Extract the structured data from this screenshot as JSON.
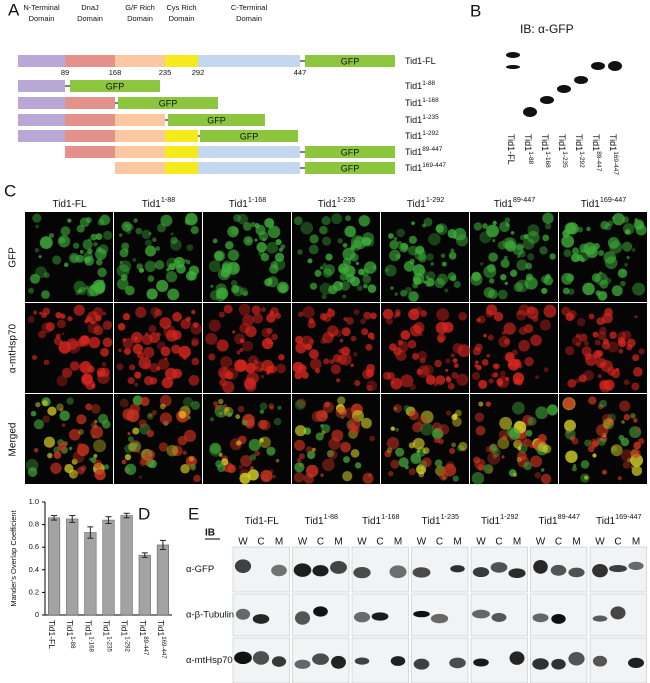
{
  "panel_labels": {
    "a": "A",
    "b": "B",
    "c": "C",
    "d": "D",
    "e": "E"
  },
  "schematic": {
    "domains": [
      {
        "lines": [
          "N-Terminal",
          "Domain"
        ],
        "color": "#b9a7d6"
      },
      {
        "lines": [
          "DnaJ",
          "Domain"
        ],
        "color": "#e3918a"
      },
      {
        "lines": [
          "G/F Rich",
          "Domain"
        ],
        "color": "#f9c8a2"
      },
      {
        "lines": [
          "Cys Rich",
          "Domain"
        ],
        "color": "#f4ea1c"
      },
      {
        "lines": [
          "C-Terminal",
          "Domain"
        ],
        "color": "#c4d7ee"
      }
    ],
    "positions": [
      "89",
      "168",
      "235",
      "292",
      "447"
    ],
    "gfp": "GFP",
    "gfp_color": "#8cc63f"
  },
  "constructs": [
    {
      "base": "Tid1-FL"
    },
    {
      "base": "Tid1",
      "sup": "1-88"
    },
    {
      "base": "Tid1",
      "sup": "1-168"
    },
    {
      "base": "Tid1",
      "sup": "1-235"
    },
    {
      "base": "Tid1",
      "sup": "1-292"
    },
    {
      "base": "Tid1",
      "sup": "89-447"
    },
    {
      "base": "Tid1",
      "sup": "169-447"
    }
  ],
  "western_b": {
    "title": "IB: α-GFP"
  },
  "microscopy": {
    "rows": [
      "GFP",
      "α-mtHsp70",
      "Merged"
    ]
  },
  "chart_data": {
    "type": "bar",
    "y_label": "Mander's Overlap Coefficient",
    "categories": [
      {
        "base": "Tid1-FL"
      },
      {
        "base": "Tid1",
        "sup": "1-88"
      },
      {
        "base": "Tid1",
        "sup": "1-168"
      },
      {
        "base": "Tid1",
        "sup": "1-235"
      },
      {
        "base": "Tid1",
        "sup": "1-292"
      },
      {
        "base": "Tid1",
        "sup": "89-447"
      },
      {
        "base": "Tid1",
        "sup": "169-447"
      }
    ],
    "values": [
      0.86,
      0.85,
      0.73,
      0.84,
      0.88,
      0.53,
      0.62
    ],
    "errors": [
      0.02,
      0.03,
      0.05,
      0.03,
      0.02,
      0.02,
      0.04
    ],
    "color": "#a3a3a3",
    "ylim": [
      0,
      1
    ],
    "yticks": [
      0,
      0.2,
      0.4,
      0.6,
      0.8,
      {
        "value": 1,
        "label": "1.0"
      }
    ]
  },
  "western_e": {
    "ib": "IB",
    "lanes": [
      "W",
      "C",
      "M"
    ],
    "rows": [
      "α-GFP",
      "α-β-Tubulin",
      "α-mtHsp70"
    ]
  }
}
